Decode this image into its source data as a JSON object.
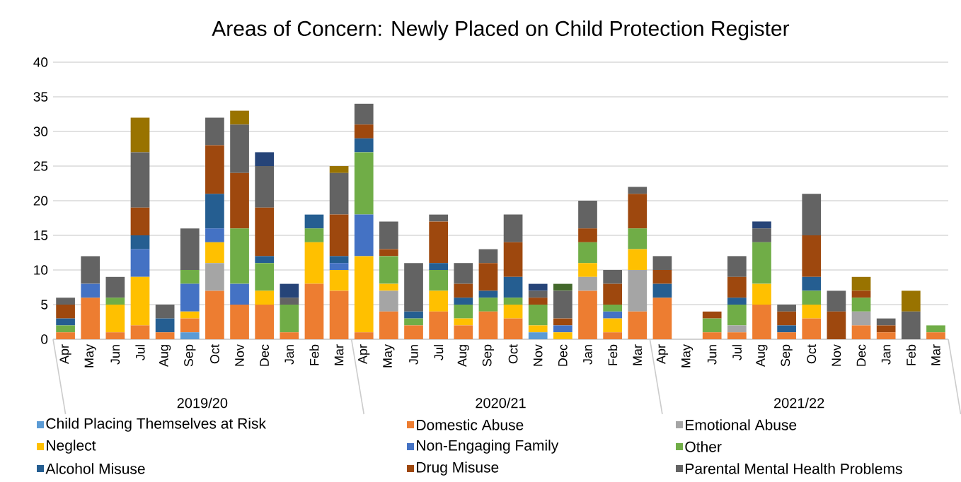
{
  "chart_data": {
    "type": "bar",
    "stacked": true,
    "title": "Areas of Concern: Newly Placed on Child Protection Register",
    "categories": [
      "Apr",
      "May",
      "Jun",
      "Jul",
      "Aug",
      "Sep",
      "Oct",
      "Nov",
      "Dec",
      "Jan",
      "Feb",
      "Mar",
      "Apr",
      "May",
      "Jun",
      "Jul",
      "Aug",
      "Sep",
      "Oct",
      "Nov",
      "Dec",
      "Jan",
      "Feb",
      "Mar",
      "Apr",
      "May",
      "Jun",
      "Jul",
      "Aug",
      "Sep",
      "Oct",
      "Nov",
      "Dec",
      "Jan",
      "Feb",
      "Mar"
    ],
    "series": [
      {
        "name": "Child Placing Themselves at Risk",
        "color": "#5b9bd5",
        "values": [
          null,
          null,
          null,
          null,
          null,
          1,
          null,
          null,
          null,
          null,
          null,
          null,
          null,
          null,
          null,
          null,
          null,
          null,
          null,
          1,
          null,
          null,
          null,
          null,
          null,
          null,
          null,
          null,
          null,
          null,
          null,
          null,
          null,
          null,
          null,
          null
        ]
      },
      {
        "name": "Domestic Abuse",
        "color": "#ed7d31",
        "values": [
          1,
          6,
          1,
          2,
          1,
          2,
          7,
          5,
          5,
          1,
          8,
          7,
          1,
          4,
          2,
          4,
          2,
          4,
          3,
          null,
          null,
          7,
          1,
          4,
          6,
          null,
          1,
          1,
          5,
          1,
          3,
          null,
          2,
          1,
          null,
          1
        ]
      },
      {
        "name": "Emotional Abuse",
        "color": "#a5a5a5",
        "values": [
          null,
          null,
          null,
          null,
          null,
          null,
          4,
          null,
          null,
          null,
          null,
          null,
          null,
          3,
          null,
          null,
          null,
          null,
          null,
          null,
          null,
          2,
          null,
          6,
          null,
          null,
          null,
          1,
          null,
          null,
          null,
          null,
          2,
          null,
          null,
          null
        ]
      },
      {
        "name": "Neglect",
        "color": "#ffc000",
        "values": [
          null,
          null,
          4,
          7,
          null,
          1,
          3,
          null,
          2,
          null,
          6,
          3,
          11,
          1,
          null,
          3,
          1,
          null,
          2,
          1,
          1,
          2,
          2,
          3,
          null,
          null,
          null,
          null,
          3,
          null,
          2,
          null,
          null,
          null,
          null,
          null
        ]
      },
      {
        "name": "Non-Engaging Family",
        "color": "#4472c4",
        "values": [
          null,
          2,
          null,
          4,
          null,
          4,
          2,
          3,
          null,
          null,
          null,
          1,
          6,
          null,
          null,
          null,
          null,
          null,
          null,
          null,
          1,
          null,
          1,
          null,
          null,
          null,
          null,
          null,
          null,
          null,
          null,
          null,
          null,
          null,
          null,
          null
        ]
      },
      {
        "name": "Other",
        "color": "#70ad47",
        "values": [
          1,
          null,
          1,
          null,
          null,
          2,
          null,
          8,
          4,
          4,
          2,
          null,
          9,
          4,
          1,
          3,
          2,
          2,
          1,
          3,
          null,
          3,
          1,
          3,
          null,
          null,
          2,
          3,
          6,
          null,
          2,
          null,
          2,
          null,
          null,
          1
        ]
      },
      {
        "name": "Alcohol Misuse",
        "color": "#255e91",
        "values": [
          1,
          null,
          null,
          2,
          2,
          null,
          5,
          null,
          1,
          null,
          2,
          1,
          2,
          null,
          1,
          1,
          1,
          1,
          3,
          null,
          null,
          null,
          null,
          null,
          2,
          null,
          null,
          1,
          null,
          1,
          2,
          null,
          null,
          null,
          null,
          null
        ]
      },
      {
        "name": "Drug Misuse",
        "color": "#9e480e",
        "values": [
          2,
          null,
          null,
          4,
          null,
          null,
          7,
          8,
          7,
          null,
          null,
          6,
          2,
          1,
          null,
          6,
          2,
          4,
          5,
          1,
          1,
          2,
          3,
          5,
          2,
          null,
          1,
          3,
          null,
          2,
          6,
          4,
          1,
          1,
          null,
          null
        ]
      },
      {
        "name": "Parental Mental Health Problems",
        "color": "#636363",
        "values": [
          1,
          4,
          3,
          8,
          2,
          6,
          4,
          7,
          6,
          1,
          null,
          6,
          3,
          4,
          7,
          1,
          3,
          2,
          4,
          1,
          4,
          4,
          2,
          1,
          2,
          null,
          null,
          3,
          2,
          1,
          6,
          3,
          null,
          1,
          4,
          null
        ]
      },
      {
        "color": "#264478",
        "values": [
          null,
          null,
          null,
          null,
          null,
          null,
          null,
          null,
          2,
          2,
          null,
          null,
          null,
          null,
          null,
          null,
          null,
          null,
          null,
          1,
          null,
          null,
          null,
          null,
          null,
          null,
          null,
          null,
          1,
          null,
          null,
          null,
          null,
          null,
          null,
          null
        ]
      },
      {
        "color": "#43682b",
        "values": [
          null,
          null,
          null,
          null,
          null,
          null,
          null,
          null,
          null,
          null,
          null,
          null,
          null,
          null,
          null,
          null,
          null,
          null,
          null,
          null,
          1,
          null,
          null,
          null,
          null,
          null,
          null,
          null,
          null,
          null,
          null,
          null,
          null,
          null,
          null,
          null
        ]
      },
      {
        "color": "#997300",
        "values": [
          null,
          null,
          null,
          5,
          null,
          null,
          null,
          2,
          null,
          null,
          null,
          1,
          null,
          null,
          null,
          null,
          null,
          null,
          null,
          null,
          null,
          null,
          null,
          null,
          null,
          null,
          null,
          null,
          null,
          null,
          null,
          null,
          2,
          null,
          3,
          null
        ]
      }
    ],
    "ylim": [
      0,
      40
    ],
    "yticks": [
      0,
      5,
      10,
      15,
      20,
      25,
      30,
      35,
      40
    ],
    "grid": "y",
    "legend": "bottom",
    "annotations": [
      "2019/20",
      "2020/21",
      "2021/22"
    ]
  }
}
